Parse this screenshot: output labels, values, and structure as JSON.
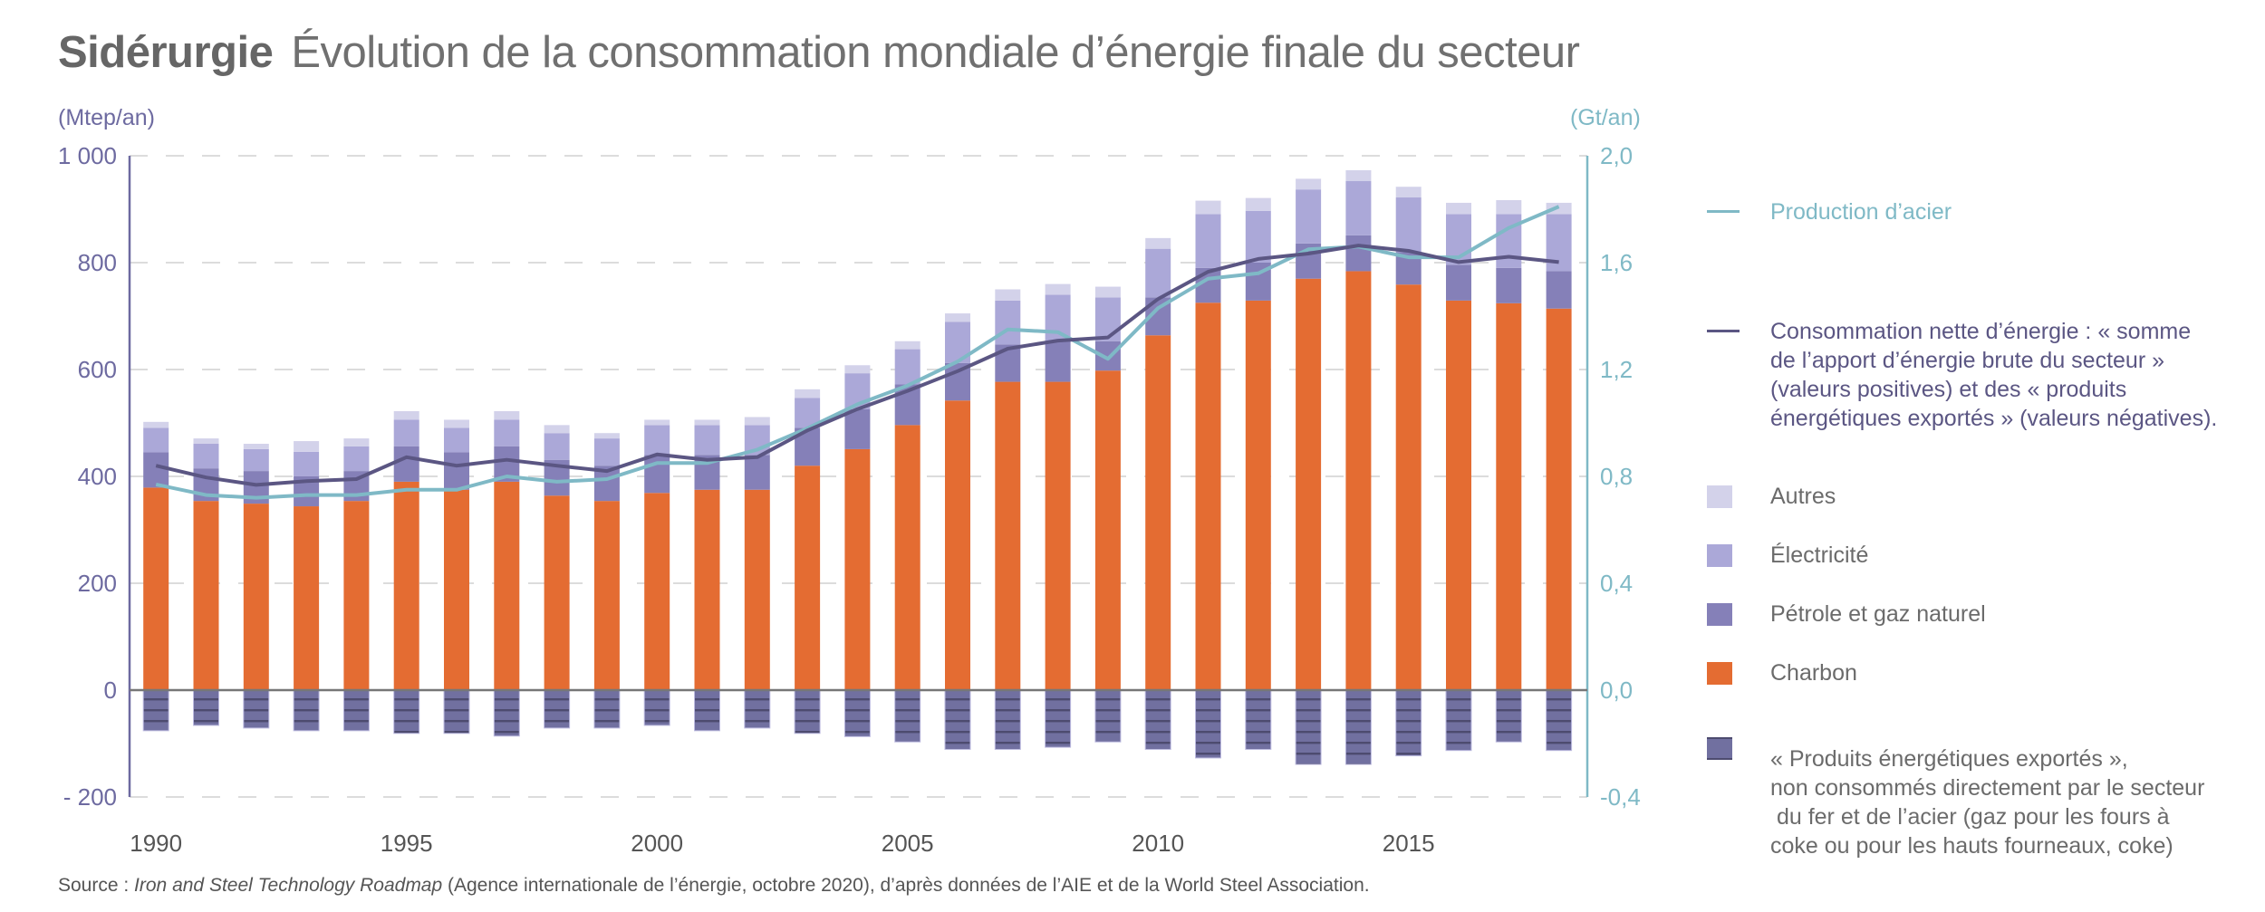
{
  "title": {
    "bold": "Sidérurgie",
    "light": "Évolution de la consommation mondiale d’énergie finale du secteur"
  },
  "source": {
    "prefix": "Source : ",
    "italic": "Iron and Steel Technology Roadmap",
    "suffix": " (Agence internationale de l’énergie, octobre 2020), d’après données de l’AIE et de la World Steel Association."
  },
  "legend": {
    "production": "Production d’acier",
    "net": [
      "Consommation nette d’énergie : « somme",
      "de l’apport d’énergie brute du secteur »",
      "(valeurs positives) et des « produits",
      "énergétiques exportés » (valeurs négatives)."
    ],
    "autres": "Autres",
    "electricite": "Électricité",
    "petrole": "Pétrole et gaz naturel",
    "charbon": "Charbon",
    "exportes": [
      "« Produits énergétiques exportés »,",
      "non consommés directement par le secteur",
      " du fer et de l’acier (gaz pour les fours à",
      "coke ou pour les hauts fourneaux, coke)"
    ]
  },
  "colors": {
    "charbon": "#e46c32",
    "petrole": "#8580b8",
    "electricite": "#aba8d8",
    "autres": "#d3d2ea",
    "exportes": "#7170a0",
    "exportes_stripe": "#4d4b6f",
    "net_line": "#5b5683",
    "production_line": "#7fb9c6",
    "left_axis": "#6d6aa0",
    "right_axis": "#7fb9c6"
  },
  "chart_data": {
    "type": "bar",
    "stacked": true,
    "title": "Sidérurgie Évolution de la consommation mondiale d’énergie finale du secteur",
    "ylabel": "(Mtep/an)",
    "y2label": "(Gt/an)",
    "ylim": [
      -200,
      1000
    ],
    "y2lim": [
      -0.4,
      2.0
    ],
    "yticks": [
      -200,
      0,
      200,
      400,
      600,
      800,
      1000
    ],
    "ytick_labels": [
      "- 200",
      "0",
      "200",
      "400",
      "600",
      "800",
      "1 000"
    ],
    "y2ticks": [
      -0.4,
      0.0,
      0.4,
      0.8,
      1.2,
      1.6,
      2.0
    ],
    "y2tick_labels": [
      "-0,4",
      "0,0",
      "0,4",
      "0,8",
      "1,2",
      "1,6",
      "2,0"
    ],
    "xtick_labels": [
      "1990",
      "1995",
      "2000",
      "2005",
      "2010",
      "2015"
    ],
    "grid": true,
    "legend_position": "right",
    "categories": [
      1990,
      1991,
      1992,
      1993,
      1994,
      1995,
      1996,
      1997,
      1998,
      1999,
      2000,
      2001,
      2002,
      2003,
      2004,
      2005,
      2006,
      2007,
      2008,
      2009,
      2010,
      2011,
      2012,
      2013,
      2014,
      2015,
      2016,
      2017,
      2018
    ],
    "series": [
      {
        "name": "Charbon",
        "axis": "left",
        "kind": "bar",
        "values": [
          379,
          354,
          349,
          344,
          354,
          390,
          375,
          390,
          364,
          354,
          369,
          375,
          375,
          420,
          451,
          496,
          542,
          577,
          577,
          598,
          664,
          725,
          729,
          770,
          784,
          759,
          729,
          724,
          714
        ]
      },
      {
        "name": "Pétrole et gaz naturel",
        "axis": "left",
        "kind": "bar",
        "values": [
          66,
          61,
          61,
          56,
          56,
          66,
          70,
          66,
          67,
          66,
          71,
          65,
          65,
          71,
          75,
          76,
          70,
          70,
          76,
          55,
          71,
          65,
          71,
          66,
          67,
          61,
          67,
          66,
          70
        ]
      },
      {
        "name": "Électricité",
        "axis": "left",
        "kind": "bar",
        "values": [
          46,
          46,
          41,
          46,
          46,
          50,
          46,
          50,
          50,
          51,
          56,
          56,
          56,
          56,
          67,
          66,
          77,
          82,
          87,
          82,
          91,
          101,
          97,
          101,
          102,
          102,
          95,
          101,
          107
        ]
      },
      {
        "name": "Autres",
        "axis": "left",
        "kind": "bar",
        "values": [
          11,
          10,
          10,
          20,
          15,
          16,
          15,
          16,
          15,
          10,
          10,
          10,
          15,
          16,
          15,
          15,
          16,
          21,
          20,
          20,
          20,
          25,
          24,
          20,
          20,
          20,
          21,
          26,
          21
        ]
      },
      {
        "name": "« Produits énergétiques exportés »",
        "axis": "left",
        "kind": "bar",
        "values": [
          -76,
          -66,
          -71,
          -76,
          -76,
          -81,
          -81,
          -86,
          -71,
          -71,
          -66,
          -76,
          -71,
          -81,
          -87,
          -97,
          -111,
          -111,
          -107,
          -97,
          -111,
          -127,
          -111,
          -139,
          -139,
          -123,
          -113,
          -97,
          -113
        ]
      },
      {
        "name": "Consommation nette d’énergie",
        "axis": "left",
        "kind": "line",
        "values": [
          420,
          398,
          384,
          391,
          395,
          436,
          420,
          431,
          420,
          410,
          441,
          431,
          436,
          486,
          526,
          560,
          597,
          639,
          654,
          660,
          732,
          783,
          807,
          817,
          832,
          822,
          801,
          811,
          801
        ]
      },
      {
        "name": "Production d’acier",
        "axis": "right",
        "kind": "line",
        "values": [
          0.77,
          0.73,
          0.72,
          0.73,
          0.73,
          0.75,
          0.75,
          0.8,
          0.78,
          0.79,
          0.85,
          0.85,
          0.9,
          0.98,
          1.07,
          1.14,
          1.23,
          1.35,
          1.34,
          1.24,
          1.43,
          1.54,
          1.56,
          1.65,
          1.66,
          1.62,
          1.62,
          1.73,
          1.81
        ]
      }
    ]
  }
}
